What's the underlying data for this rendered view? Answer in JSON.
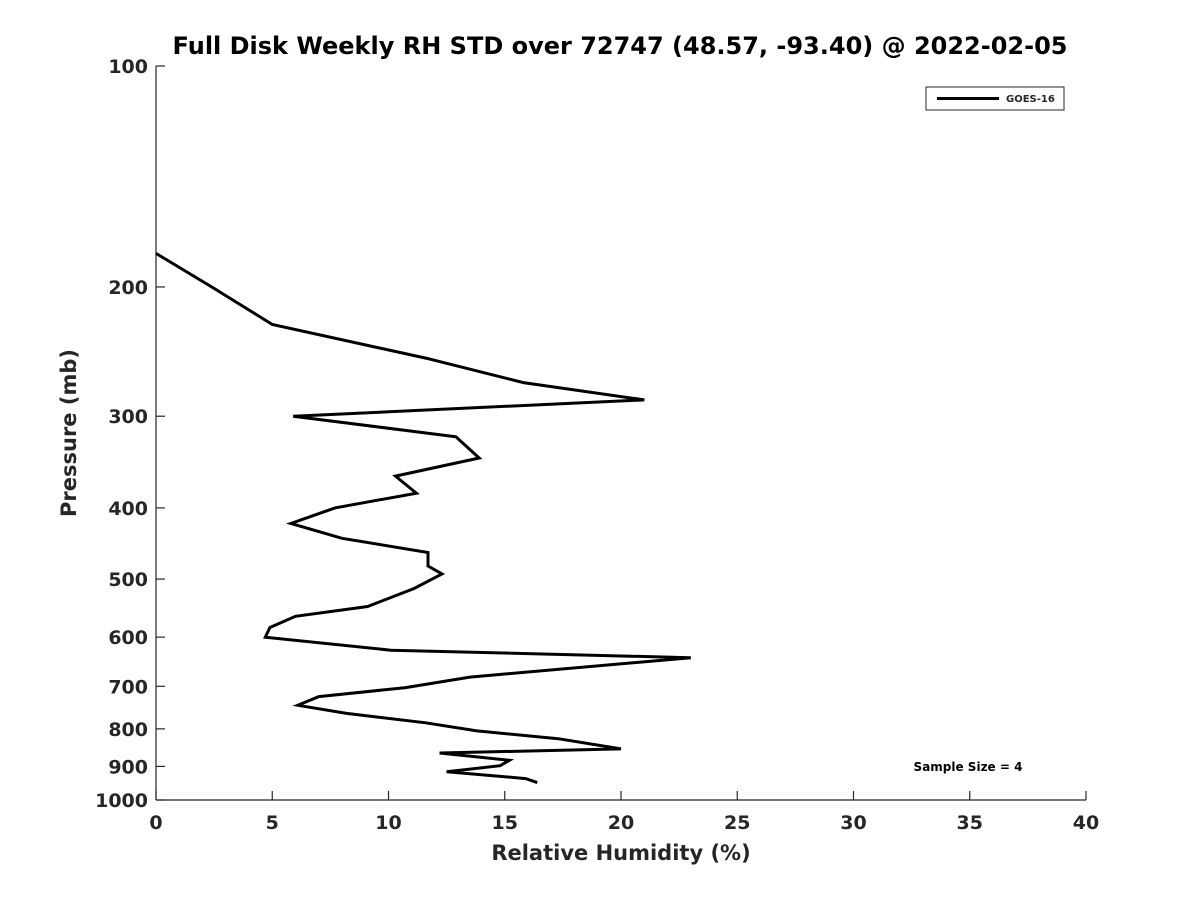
{
  "chart_data": {
    "type": "line",
    "title": "Full Disk Weekly RH STD over 72747 (48.57, -93.40) @ 2022-02-05",
    "xlabel": "Relative Humidity (%)",
    "ylabel": "Pressure (mb)",
    "xlim": [
      0,
      40
    ],
    "ylim": [
      100,
      1000
    ],
    "y_scale": "log",
    "y_reversed": true,
    "grid": false,
    "legend_position": "top-right",
    "x_ticks": [
      "0",
      "5",
      "10",
      "15",
      "20",
      "25",
      "30",
      "35",
      "40"
    ],
    "x_tick_values": [
      0,
      5,
      10,
      15,
      20,
      25,
      30,
      35,
      40
    ],
    "y_ticks": [
      "100",
      "200",
      "300",
      "400",
      "500",
      "600",
      "700",
      "800",
      "900",
      "1000"
    ],
    "y_tick_values": [
      100,
      200,
      300,
      400,
      500,
      600,
      700,
      800,
      900,
      1000
    ],
    "series": [
      {
        "name": "GOES-16",
        "color": "#000000",
        "x": [
          0.0,
          2.4,
          5.0,
          11.6,
          15.8,
          21.0,
          5.9,
          12.9,
          13.9,
          10.3,
          11.2,
          7.7,
          5.8,
          8.0,
          11.7,
          11.7,
          12.3,
          11.1,
          9.1,
          6.0,
          4.9,
          4.7,
          10.1,
          23.0,
          13.5,
          10.7,
          7.0,
          6.1,
          8.2,
          11.6,
          13.8,
          17.3,
          20.0,
          12.2,
          15.2,
          14.8,
          12.5,
          15.9,
          16.4
        ],
        "y": [
          180,
          200,
          225,
          250,
          270,
          285,
          300,
          320,
          342,
          362,
          382,
          400,
          420,
          440,
          460,
          480,
          492,
          515,
          545,
          562,
          582,
          600,
          625,
          640,
          680,
          703,
          723,
          743,
          762,
          785,
          805,
          825,
          852,
          863,
          883,
          898,
          915,
          935,
          947
        ]
      }
    ],
    "annotations": [
      "Sample Size = 4"
    ]
  }
}
